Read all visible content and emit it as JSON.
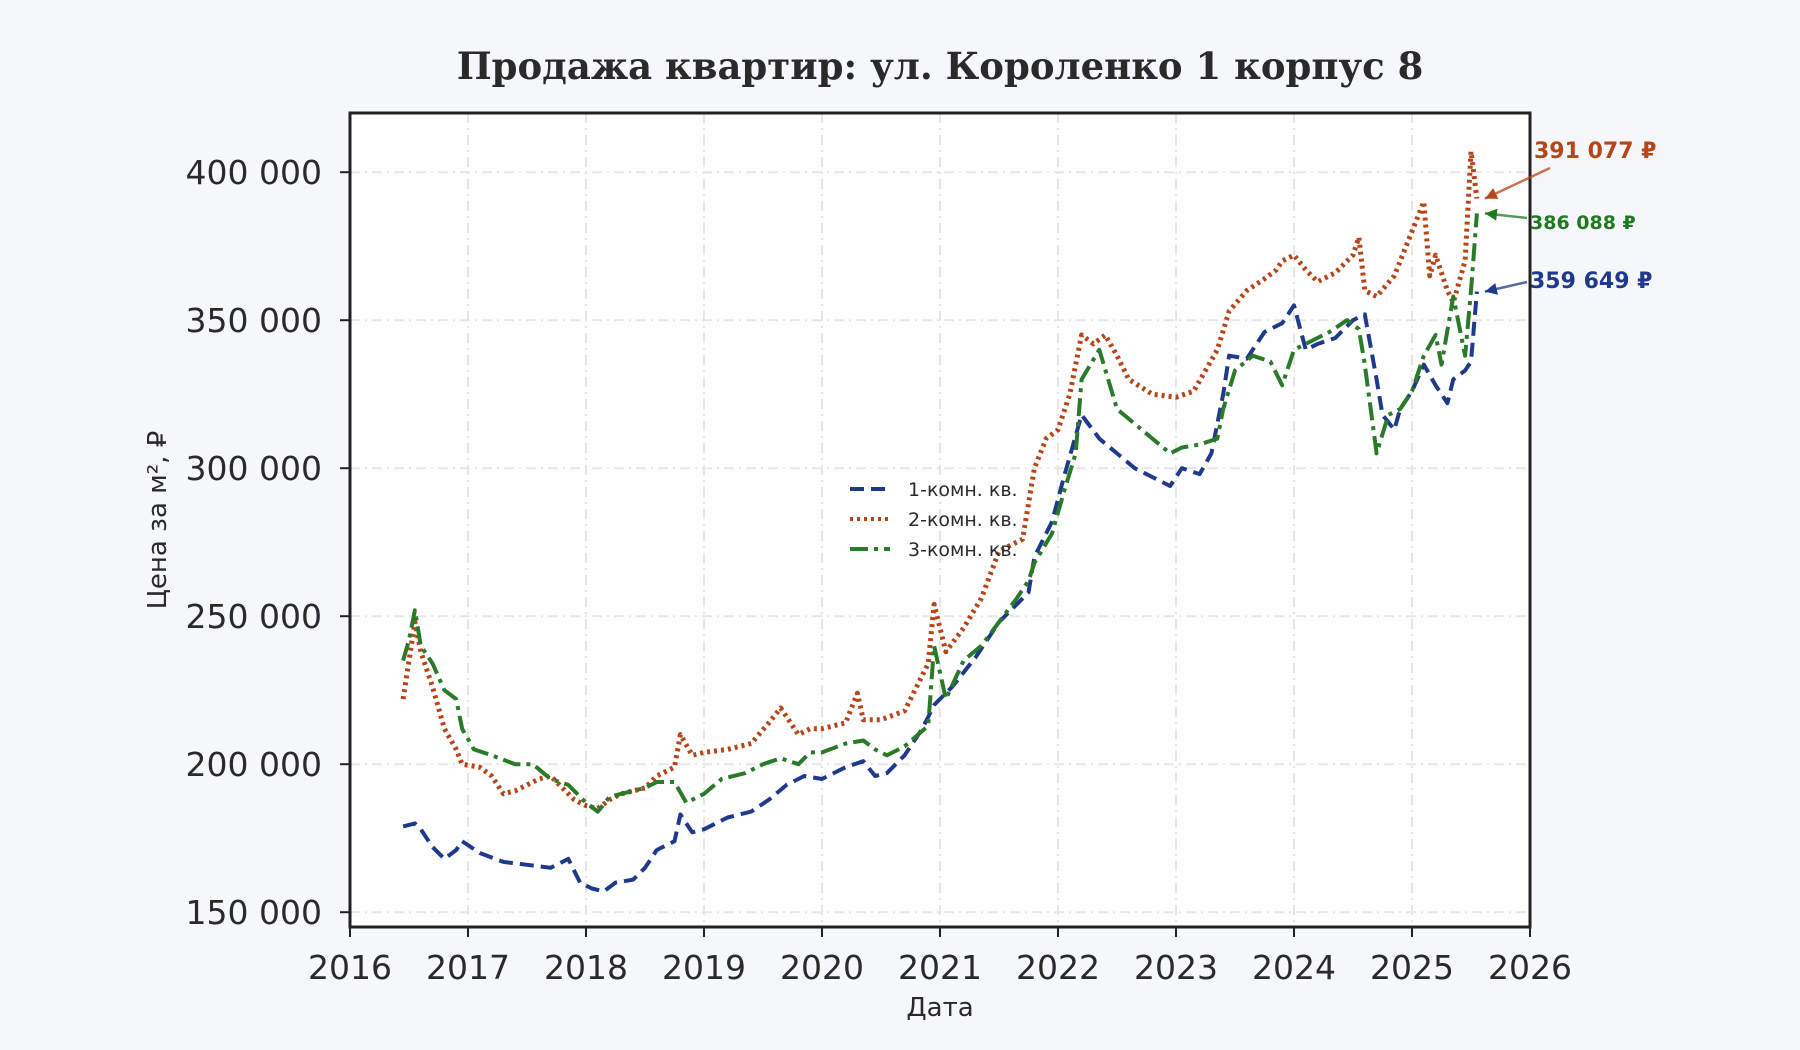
{
  "chart_data": {
    "type": "line",
    "title": "Продажа квартир: ул. Короленко 1 корпус 8",
    "xlabel": "Дата",
    "ylabel": "Цена за м², ₽",
    "xlim": [
      2016.0,
      2026.0
    ],
    "ylim": [
      145000,
      420000
    ],
    "x_ticks": [
      "2016",
      "2017",
      "2018",
      "2019",
      "2020",
      "2021",
      "2022",
      "2023",
      "2024",
      "2025",
      "2026"
    ],
    "y_ticks": [
      {
        "value": 150000,
        "label": "150 000"
      },
      {
        "value": 200000,
        "label": "200 000"
      },
      {
        "value": 250000,
        "label": "250 000"
      },
      {
        "value": 300000,
        "label": "300 000"
      },
      {
        "value": 350000,
        "label": "350 000"
      },
      {
        "value": 400000,
        "label": "400 000"
      }
    ],
    "grid": true,
    "legend_position": "center",
    "series": [
      {
        "name": "1-комн. кв.",
        "color": "#1f3a8a",
        "style": "dashed",
        "x": [
          2016.45,
          2016.55,
          2016.6,
          2016.7,
          2016.8,
          2016.9,
          2016.95,
          2017.1,
          2017.3,
          2017.5,
          2017.7,
          2017.8,
          2017.85,
          2017.95,
          2018.05,
          2018.15,
          2018.25,
          2018.4,
          2018.5,
          2018.6,
          2018.75,
          2018.8,
          2018.9,
          2019.0,
          2019.2,
          2019.4,
          2019.55,
          2019.7,
          2019.85,
          2020.0,
          2020.2,
          2020.35,
          2020.45,
          2020.55,
          2020.7,
          2020.85,
          2020.95,
          2021.1,
          2021.3,
          2021.5,
          2021.65,
          2021.75,
          2021.8,
          2021.95,
          2022.05,
          2022.2,
          2022.35,
          2022.5,
          2022.65,
          2022.8,
          2022.95,
          2023.05,
          2023.2,
          2023.3,
          2023.4,
          2023.45,
          2023.6,
          2023.75,
          2023.9,
          2024.0,
          2024.1,
          2024.2,
          2024.35,
          2024.5,
          2024.6,
          2024.7,
          2024.75,
          2024.85,
          2024.9,
          2025.0,
          2025.1,
          2025.2,
          2025.3,
          2025.35,
          2025.45,
          2025.5,
          2025.55
        ],
        "y": [
          179000,
          180000,
          178000,
          172000,
          168000,
          171000,
          174000,
          170000,
          167000,
          166000,
          165000,
          167000,
          168000,
          160000,
          158000,
          157000,
          160000,
          161000,
          165000,
          171000,
          174000,
          183000,
          177000,
          178000,
          182000,
          184000,
          188000,
          193000,
          196000,
          195000,
          199000,
          201000,
          196000,
          197000,
          203000,
          212000,
          220000,
          226000,
          236000,
          248000,
          254000,
          258000,
          270000,
          282000,
          297000,
          318000,
          310000,
          305000,
          300000,
          297000,
          294000,
          300000,
          298000,
          305000,
          325000,
          338000,
          337000,
          346000,
          349000,
          355000,
          340000,
          342000,
          344000,
          350000,
          352000,
          330000,
          318000,
          313000,
          320000,
          326000,
          335000,
          328000,
          322000,
          330000,
          333000,
          336000,
          359649
        ]
      },
      {
        "name": "2-комн. кв.",
        "color": "#b5461a",
        "style": "dotted",
        "x": [
          2016.45,
          2016.5,
          2016.55,
          2016.6,
          2016.7,
          2016.8,
          2016.9,
          2016.95,
          2017.1,
          2017.2,
          2017.3,
          2017.4,
          2017.6,
          2017.7,
          2017.8,
          2017.9,
          2018.0,
          2018.1,
          2018.2,
          2018.3,
          2018.5,
          2018.6,
          2018.75,
          2018.8,
          2018.9,
          2019.0,
          2019.2,
          2019.4,
          2019.55,
          2019.65,
          2019.8,
          2019.9,
          2020.0,
          2020.2,
          2020.3,
          2020.35,
          2020.5,
          2020.7,
          2020.8,
          2020.9,
          2020.95,
          2021.05,
          2021.2,
          2021.35,
          2021.5,
          2021.7,
          2021.75,
          2021.8,
          2021.9,
          2022.0,
          2022.1,
          2022.2,
          2022.3,
          2022.4,
          2022.5,
          2022.6,
          2022.8,
          2023.0,
          2023.15,
          2023.25,
          2023.35,
          2023.45,
          2023.6,
          2023.75,
          2023.85,
          2023.9,
          2024.0,
          2024.1,
          2024.2,
          2024.35,
          2024.5,
          2024.55,
          2024.6,
          2024.7,
          2024.85,
          2025.0,
          2025.1,
          2025.15,
          2025.2,
          2025.3,
          2025.35,
          2025.45,
          2025.5,
          2025.55
        ],
        "y": [
          222000,
          235000,
          248000,
          238000,
          226000,
          212000,
          205000,
          200000,
          199000,
          196000,
          190000,
          191000,
          195000,
          196000,
          192000,
          188000,
          186000,
          185000,
          188000,
          190000,
          192000,
          196000,
          199000,
          210000,
          203000,
          204000,
          205000,
          207000,
          214000,
          219000,
          210000,
          212000,
          212000,
          214000,
          224000,
          215000,
          215000,
          218000,
          226000,
          234000,
          254000,
          238000,
          246000,
          256000,
          272000,
          276000,
          288000,
          300000,
          310000,
          313000,
          325000,
          345000,
          342000,
          345000,
          338000,
          330000,
          325000,
          324000,
          326000,
          333000,
          340000,
          353000,
          360000,
          364000,
          367000,
          370000,
          372000,
          367000,
          363000,
          366000,
          372000,
          378000,
          360000,
          358000,
          365000,
          380000,
          390000,
          365000,
          372000,
          360000,
          356000,
          370000,
          407000,
          391077
        ]
      },
      {
        "name": "3-комн. кв.",
        "color": "#2a7a2a",
        "style": "dashdot",
        "x": [
          2016.45,
          2016.5,
          2016.55,
          2016.6,
          2016.7,
          2016.8,
          2016.9,
          2016.95,
          2017.05,
          2017.2,
          2017.4,
          2017.55,
          2017.7,
          2017.85,
          2018.0,
          2018.1,
          2018.2,
          2018.3,
          2018.5,
          2018.6,
          2018.75,
          2018.85,
          2019.0,
          2019.15,
          2019.35,
          2019.5,
          2019.65,
          2019.8,
          2019.9,
          2020.0,
          2020.2,
          2020.35,
          2020.45,
          2020.55,
          2020.7,
          2020.9,
          2020.95,
          2021.05,
          2021.2,
          2021.35,
          2021.5,
          2021.65,
          2021.75,
          2021.8,
          2021.95,
          2022.05,
          2022.15,
          2022.2,
          2022.35,
          2022.5,
          2022.65,
          2022.8,
          2022.95,
          2023.05,
          2023.2,
          2023.35,
          2023.4,
          2023.5,
          2023.65,
          2023.8,
          2023.9,
          2024.0,
          2024.15,
          2024.3,
          2024.45,
          2024.55,
          2024.6,
          2024.7,
          2024.8,
          2024.9,
          2025.0,
          2025.1,
          2025.2,
          2025.25,
          2025.35,
          2025.45,
          2025.5,
          2025.55
        ],
        "y": [
          235000,
          242000,
          252000,
          240000,
          234000,
          225000,
          222000,
          212000,
          205000,
          203000,
          200000,
          200000,
          195000,
          193000,
          187000,
          184000,
          189000,
          190000,
          192000,
          194000,
          194000,
          187000,
          190000,
          195000,
          197000,
          200000,
          202000,
          200000,
          204000,
          204000,
          207000,
          208000,
          205000,
          203000,
          206000,
          213000,
          240000,
          222000,
          235000,
          240000,
          248000,
          256000,
          262000,
          268000,
          278000,
          292000,
          305000,
          330000,
          340000,
          320000,
          315000,
          310000,
          305000,
          307000,
          308000,
          310000,
          320000,
          333000,
          338000,
          336000,
          328000,
          340000,
          343000,
          346000,
          350000,
          347000,
          335000,
          305000,
          318000,
          320000,
          326000,
          338000,
          345000,
          335000,
          358000,
          338000,
          360000,
          386088
        ]
      }
    ],
    "annotations": [
      {
        "text": "391 077 ₽",
        "series": "2-комн. кв."
      },
      {
        "text": "386 088 ₽",
        "series": "3-комн. кв."
      },
      {
        "text": "359 649 ₽",
        "series": "1-комн. кв."
      }
    ]
  }
}
